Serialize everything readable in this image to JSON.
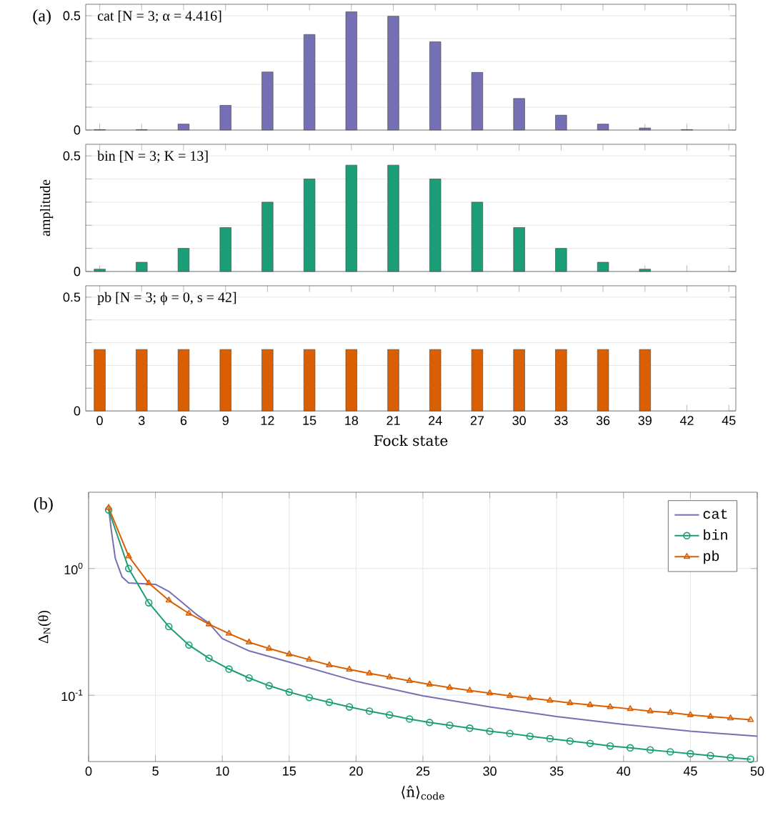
{
  "chart_data": [
    {
      "type": "bar",
      "annotations": [
        "(a)",
        "cat [N = 3; α = 4.416]"
      ],
      "x": [
        0,
        3,
        6,
        9,
        12,
        15,
        18,
        21,
        24,
        27,
        30,
        33,
        36,
        39,
        42
      ],
      "values": [
        0.002,
        0.002,
        0.026,
        0.108,
        0.254,
        0.418,
        0.517,
        0.498,
        0.386,
        0.252,
        0.138,
        0.065,
        0.026,
        0.009,
        0.002
      ],
      "color": "#7570b3",
      "xlim": [
        -1,
        45.5
      ],
      "ylim": [
        0,
        0.55
      ],
      "xticks": [
        0,
        3,
        6,
        9,
        12,
        15,
        18,
        21,
        24,
        27,
        30,
        33,
        36,
        39,
        42,
        45
      ],
      "yticks": [
        0,
        {
          "value": 0.1,
          "label": null
        },
        {
          "value": 0.2,
          "label": null
        },
        {
          "value": 0.3,
          "label": null
        },
        {
          "value": 0.4,
          "label": null
        },
        0.5
      ],
      "grid": "y",
      "tick_labels": "y"
    },
    {
      "type": "bar",
      "annotations": [
        "bin [N = 3; K = 13]"
      ],
      "ylabel": "amplitude",
      "x": [
        0,
        3,
        6,
        9,
        12,
        15,
        18,
        21,
        24,
        27,
        30,
        33,
        36,
        39
      ],
      "values": [
        0.01,
        0.04,
        0.1,
        0.19,
        0.3,
        0.4,
        0.46,
        0.46,
        0.4,
        0.3,
        0.19,
        0.1,
        0.04,
        0.01
      ],
      "color": "#1b9e77",
      "xlim": [
        -1,
        45.5
      ],
      "ylim": [
        0,
        0.55
      ],
      "xticks": [
        0,
        3,
        6,
        9,
        12,
        15,
        18,
        21,
        24,
        27,
        30,
        33,
        36,
        39,
        42,
        45
      ],
      "yticks": [
        0,
        {
          "value": 0.1,
          "label": null
        },
        {
          "value": 0.2,
          "label": null
        },
        {
          "value": 0.3,
          "label": null
        },
        {
          "value": 0.4,
          "label": null
        },
        0.5
      ],
      "grid": "y",
      "tick_labels": "y"
    },
    {
      "type": "bar",
      "annotations": [
        "pb [N = 3; ϕ = 0, s = 42]"
      ],
      "xlabel": "Fock state",
      "x": [
        0,
        3,
        6,
        9,
        12,
        15,
        18,
        21,
        24,
        27,
        30,
        33,
        36,
        39
      ],
      "values": [
        0.27,
        0.27,
        0.27,
        0.27,
        0.27,
        0.27,
        0.27,
        0.27,
        0.27,
        0.27,
        0.27,
        0.27,
        0.27,
        0.27
      ],
      "color": "#d95f02",
      "xlim": [
        -1,
        45.5
      ],
      "ylim": [
        0,
        0.55
      ],
      "xticks": [
        0,
        3,
        6,
        9,
        12,
        15,
        18,
        21,
        24,
        27,
        30,
        33,
        36,
        39,
        42,
        45
      ],
      "yticks": [
        0,
        {
          "value": 0.1,
          "label": null
        },
        {
          "value": 0.2,
          "label": null
        },
        {
          "value": 0.3,
          "label": null
        },
        {
          "value": 0.4,
          "label": null
        },
        0.5
      ],
      "grid": "y"
    },
    {
      "type": "line",
      "annotations": [
        "(b)"
      ],
      "xlabel": "⟨n̂⟩$_{code}$",
      "ylabel": "Δ$_{N}$(θ)",
      "log": "y",
      "grid": true,
      "legend": "top right",
      "line_style": "solid",
      "xlim": [
        0,
        50
      ],
      "ylim": [
        0.03,
        4
      ],
      "xticks": [
        0,
        5,
        10,
        15,
        20,
        25,
        30,
        35,
        40,
        45,
        50
      ],
      "yticks": [
        {
          "value": 0.1,
          "label": "10$^{-1}$"
        },
        {
          "value": 1,
          "label": "10$^{0}$"
        }
      ],
      "series": [
        {
          "name": "cat",
          "color": "#7570b3",
          "marker": "none",
          "x": [
            1.5,
            1.7,
            2,
            2.5,
            3,
            4,
            5,
            6,
            7,
            8,
            9,
            10,
            12,
            15,
            20,
            25,
            30,
            35,
            40,
            45,
            50
          ],
          "values": [
            3.0,
            2.0,
            1.2,
            0.86,
            0.77,
            0.76,
            0.75,
            0.66,
            0.54,
            0.44,
            0.37,
            0.28,
            0.224,
            0.183,
            0.129,
            0.099,
            0.081,
            0.068,
            0.059,
            0.052,
            0.0475
          ]
        },
        {
          "name": "bin",
          "color": "#1b9e77",
          "marker": "circle",
          "x": [
            1.5,
            3,
            4.5,
            6,
            7.5,
            9,
            10.5,
            12,
            13.5,
            15,
            16.5,
            18,
            19.5,
            21,
            22.5,
            24,
            25.5,
            27,
            28.5,
            30,
            31.5,
            33,
            34.5,
            36,
            37.5,
            39,
            40.5,
            42,
            43.5,
            45,
            46.5,
            48,
            49.5
          ],
          "values": [
            2.9,
            1.0,
            0.537,
            0.348,
            0.249,
            0.196,
            0.161,
            0.137,
            0.119,
            0.106,
            0.096,
            0.088,
            0.081,
            0.075,
            0.07,
            0.065,
            0.061,
            0.058,
            0.055,
            0.052,
            0.05,
            0.0475,
            0.0455,
            0.0435,
            0.0417,
            0.0398,
            0.0385,
            0.0371,
            0.0358,
            0.0346,
            0.0334,
            0.0322,
            0.0313
          ]
        },
        {
          "name": "pb",
          "color": "#d95f02",
          "marker": "triangle",
          "x": [
            1.5,
            3,
            4.5,
            6,
            7.5,
            9,
            10.5,
            12,
            13.5,
            15,
            16.5,
            18,
            19.5,
            21,
            22.5,
            24,
            25.5,
            27,
            28.5,
            30,
            31.5,
            33,
            34.5,
            36,
            37.5,
            39,
            40.5,
            42,
            43.5,
            45,
            46.5,
            48,
            49.5
          ],
          "values": [
            3.02,
            1.25,
            0.766,
            0.561,
            0.442,
            0.364,
            0.307,
            0.262,
            0.234,
            0.211,
            0.191,
            0.173,
            0.16,
            0.149,
            0.139,
            0.13,
            0.122,
            0.115,
            0.109,
            0.104,
            0.099,
            0.095,
            0.091,
            0.087,
            0.084,
            0.081,
            0.078,
            0.075,
            0.073,
            0.07,
            0.068,
            0.066,
            0.064
          ]
        }
      ]
    }
  ]
}
